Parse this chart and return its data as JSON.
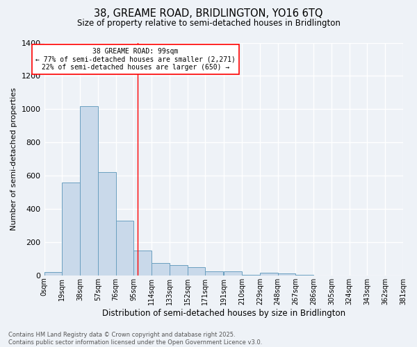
{
  "title1": "38, GREAME ROAD, BRIDLINGTON, YO16 6TQ",
  "title2": "Size of property relative to semi-detached houses in Bridlington",
  "xlabel": "Distribution of semi-detached houses by size in Bridlington",
  "ylabel": "Number of semi-detached properties",
  "bar_color": "#c9d9ea",
  "bar_edge_color": "#6a9fc0",
  "bin_edges": [
    0,
    19,
    38,
    57,
    76,
    95,
    114,
    133,
    152,
    171,
    191,
    210,
    229,
    248,
    267,
    286,
    305,
    324,
    343,
    362,
    381
  ],
  "bin_labels": [
    "0sqm",
    "19sqm",
    "38sqm",
    "57sqm",
    "76sqm",
    "95sqm",
    "114sqm",
    "133sqm",
    "152sqm",
    "171sqm",
    "191sqm",
    "210sqm",
    "229sqm",
    "248sqm",
    "267sqm",
    "286sqm",
    "305sqm",
    "324sqm",
    "343sqm",
    "362sqm",
    "381sqm"
  ],
  "counts": [
    20,
    560,
    1020,
    620,
    330,
    150,
    75,
    60,
    50,
    25,
    25,
    5,
    15,
    10,
    5,
    0,
    0,
    0,
    0,
    0
  ],
  "property_line_x": 99,
  "annotation_text": "38 GREAME ROAD: 99sqm\n← 77% of semi-detached houses are smaller (2,271)\n22% of semi-detached houses are larger (650) →",
  "annotation_box_color": "white",
  "annotation_border_color": "red",
  "line_color": "red",
  "ylim": [
    0,
    1400
  ],
  "yticks": [
    0,
    200,
    400,
    600,
    800,
    1000,
    1200,
    1400
  ],
  "footer1": "Contains HM Land Registry data © Crown copyright and database right 2025.",
  "footer2": "Contains public sector information licensed under the Open Government Licence v3.0.",
  "bg_color": "#eef2f7",
  "grid_color": "white"
}
